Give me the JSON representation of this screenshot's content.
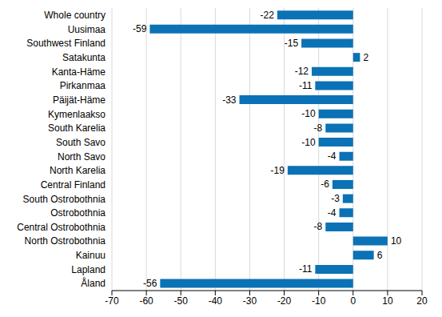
{
  "chart_data": {
    "type": "bar",
    "orientation": "horizontal",
    "categories": [
      "Whole country",
      "Uusimaa",
      "Southwest Finland",
      "Satakunta",
      "Kanta-Häme",
      "Pirkanmaa",
      "Päijät-Häme",
      "Kymenlaakso",
      "South Karelia",
      "South Savo",
      "North Savo",
      "North Karelia",
      "Central Finland",
      "South Ostrobothnia",
      "Ostrobothnia",
      "Central Ostrobothnia",
      "North Ostrobothnia",
      "Kainuu",
      "Lapland",
      "Åland"
    ],
    "values": [
      -22,
      -59,
      -15,
      2,
      -12,
      -11,
      -33,
      -10,
      -8,
      -10,
      -4,
      -19,
      -6,
      -3,
      -4,
      -8,
      10,
      6,
      -11,
      -56
    ],
    "color": "#0b72b5",
    "xlim": [
      -70,
      20
    ],
    "xticks": [
      -70,
      -60,
      -50,
      -40,
      -30,
      -20,
      -10,
      0,
      10,
      20
    ],
    "grid": true,
    "data_labels": true
  }
}
